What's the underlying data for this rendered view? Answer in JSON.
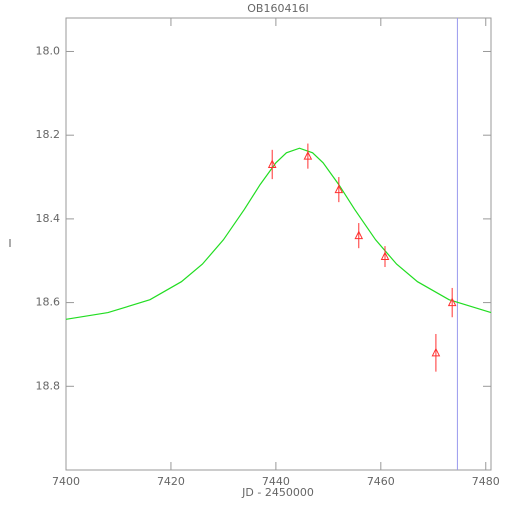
{
  "chart_data": {
    "type": "scatter",
    "title": "OB160416I",
    "x_label": "JD - 2450000",
    "y_label": "I",
    "xlim": [
      7400,
      7481
    ],
    "ylim": [
      19.0,
      17.92
    ],
    "xticks": [
      7400,
      7420,
      7440,
      7460,
      7480
    ],
    "yticks": [
      {
        "value": 18,
        "label": "18.0"
      },
      18.2,
      18.4,
      18.6,
      18.8
    ],
    "points": {
      "color": "#ff3030",
      "x": [
        7439.3,
        7446.1,
        7452.0,
        7455.8,
        7460.8,
        7470.5,
        7473.6
      ],
      "values": [
        18.27,
        18.25,
        18.33,
        18.44,
        18.49,
        18.72,
        18.6
      ],
      "errors": [
        0.035,
        0.03,
        0.03,
        0.03,
        0.025,
        0.045,
        0.035
      ]
    },
    "model": {
      "color": "#22dd22",
      "x": [
        7400,
        7408,
        7416,
        7422,
        7426,
        7430,
        7434,
        7437,
        7440,
        7442,
        7444.5,
        7447,
        7449,
        7452,
        7455,
        7459,
        7463,
        7467,
        7473,
        7481
      ],
      "values": [
        18.64,
        18.624,
        18.593,
        18.55,
        18.508,
        18.45,
        18.377,
        18.318,
        18.266,
        18.242,
        18.231,
        18.242,
        18.266,
        18.318,
        18.377,
        18.45,
        18.508,
        18.55,
        18.593,
        18.624
      ]
    },
    "vline": {
      "x": 7474.6,
      "color": "#9a9aee"
    }
  }
}
